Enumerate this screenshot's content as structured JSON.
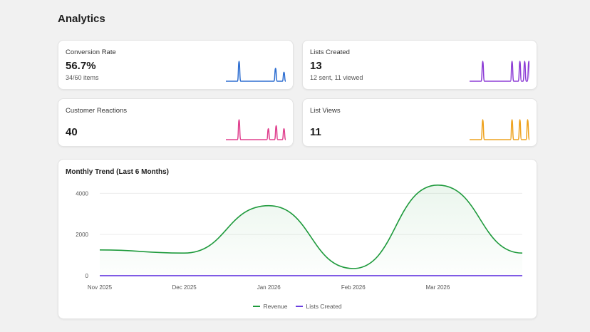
{
  "page": {
    "title": "Analytics"
  },
  "metrics": [
    {
      "label": "Conversion Rate",
      "value": "56.7%",
      "sub": "34/60 items",
      "color": "#2f6fd1",
      "spikes": [
        0.22,
        0.83,
        0.97
      ],
      "heights": [
        1.0,
        0.65,
        0.45
      ]
    },
    {
      "label": "Lists Created",
      "value": "13",
      "sub": "12 sent, 11 viewed",
      "color": "#8e3fd6",
      "spikes": [
        0.22,
        0.71,
        0.84,
        0.92,
        0.99
      ],
      "heights": [
        1.0,
        1.0,
        1.0,
        1.0,
        1.0
      ]
    },
    {
      "label": "Customer Reactions",
      "value": "40",
      "sub": "",
      "color": "#e0408e",
      "spikes": [
        0.22,
        0.71,
        0.84,
        0.97
      ],
      "heights": [
        1.0,
        0.55,
        0.7,
        0.55
      ]
    },
    {
      "label": "List Views",
      "value": "11",
      "sub": "",
      "color": "#eea320",
      "spikes": [
        0.22,
        0.71,
        0.84,
        0.97
      ],
      "heights": [
        1.0,
        1.0,
        1.0,
        1.0
      ]
    }
  ],
  "trend": {
    "title": "Monthly Trend (Last 6 Months)",
    "chart_data": {
      "type": "line",
      "x": [
        "Nov 2025",
        "Dec 2025",
        "Jan 2026",
        "Feb 2026",
        "Mar 2026",
        ""
      ],
      "series": [
        {
          "name": "Revenue",
          "color": "#1e9a3c",
          "fill": true,
          "values": [
            1250,
            1100,
            3400,
            350,
            4400,
            1100
          ]
        },
        {
          "name": "Lists Created",
          "color": "#6a3fe0",
          "fill": false,
          "values": [
            2,
            1,
            3,
            2,
            3,
            2
          ]
        }
      ],
      "yticks": [
        0,
        2000,
        4000
      ],
      "ylim": [
        0,
        4600
      ],
      "grid": true,
      "legend": "bottom"
    }
  }
}
